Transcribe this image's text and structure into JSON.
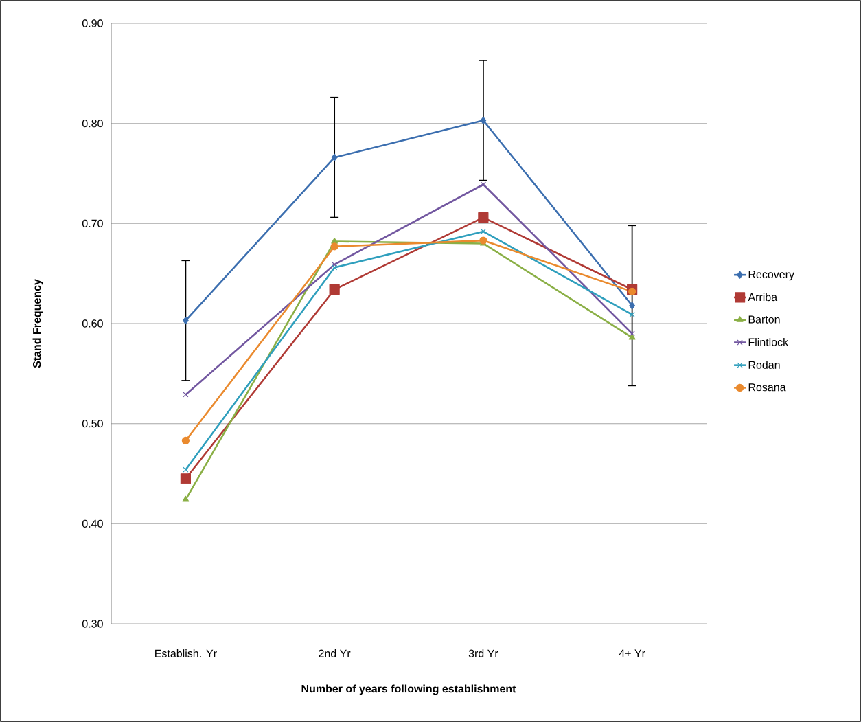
{
  "chart_data": {
    "type": "line",
    "xlabel": "Number of years following establishment",
    "ylabel": "Stand Frequency",
    "categories": [
      "Establish. Yr",
      "2nd Yr",
      "3rd Yr",
      "4+ Yr"
    ],
    "ylim": [
      0.3,
      0.9
    ],
    "yticks": [
      {
        "value": 0.3,
        "label": "0.30"
      },
      {
        "value": 0.4,
        "label": "0.40"
      },
      {
        "value": 0.5,
        "label": "0.50"
      },
      {
        "value": 0.6,
        "label": "0.60"
      },
      {
        "value": 0.7,
        "label": "0.70"
      },
      {
        "value": 0.8,
        "label": "0.80"
      },
      {
        "value": 0.9,
        "label": "0.90"
      }
    ],
    "grid": "y",
    "legend": "right",
    "series": [
      {
        "name": "Recovery",
        "color": "#3b6eaf",
        "marker": "diamond",
        "values": [
          0.603,
          0.766,
          0.803,
          0.618
        ],
        "errors": [
          0.06,
          0.06,
          0.06,
          0.08
        ]
      },
      {
        "name": "Arriba",
        "color": "#b03a35",
        "marker": "square",
        "values": [
          0.445,
          0.634,
          0.706,
          0.634
        ]
      },
      {
        "name": "Barton",
        "color": "#8aaf45",
        "marker": "triangle",
        "values": [
          0.424,
          0.682,
          0.68,
          0.586
        ]
      },
      {
        "name": "Flintlock",
        "color": "#7257a0",
        "marker": "cross",
        "values": [
          0.529,
          0.659,
          0.739,
          0.59
        ]
      },
      {
        "name": "Rodan",
        "color": "#2f9fbd",
        "marker": "cross",
        "values": [
          0.454,
          0.656,
          0.692,
          0.609
        ]
      },
      {
        "name": "Rosana",
        "color": "#ea8a2e",
        "marker": "circle",
        "values": [
          0.483,
          0.677,
          0.683,
          0.632
        ]
      }
    ]
  }
}
